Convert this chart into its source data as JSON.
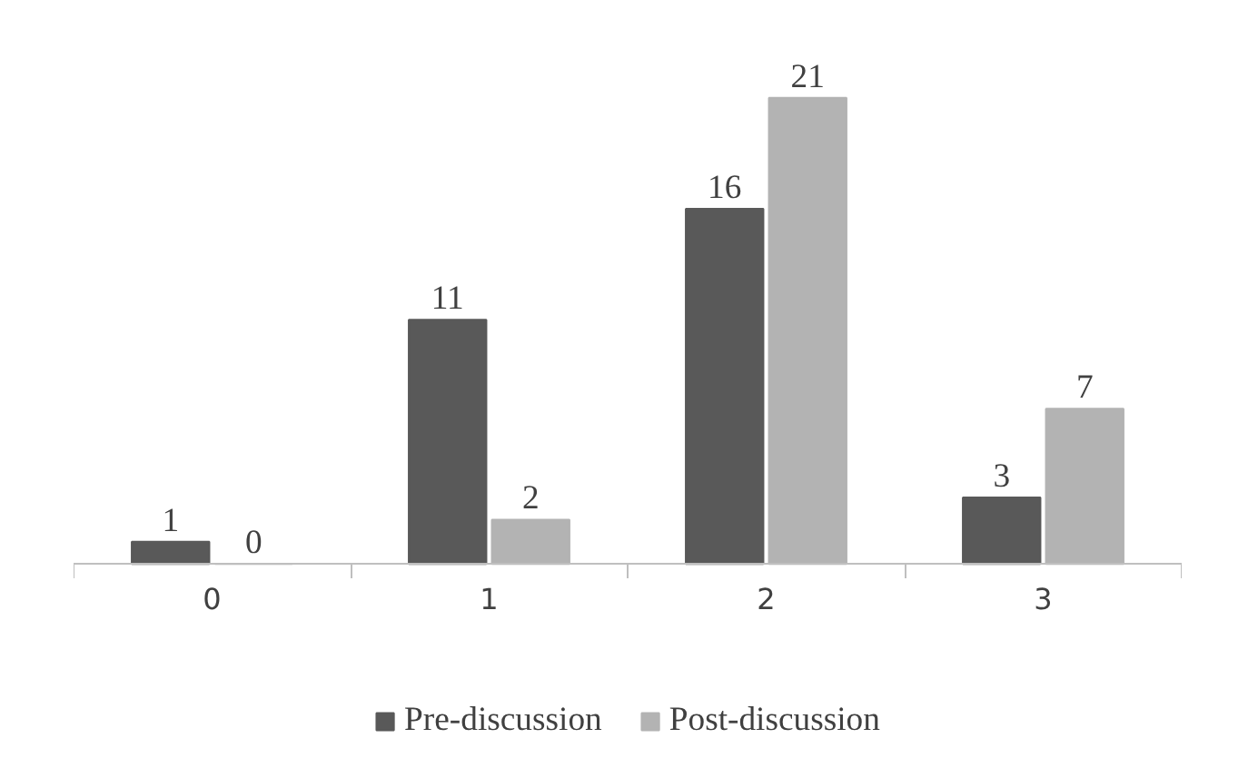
{
  "chart_data": {
    "type": "bar",
    "categories": [
      "0",
      "1",
      "2",
      "3"
    ],
    "series": [
      {
        "name": "Pre-discussion",
        "color": "#595959",
        "values": [
          1,
          11,
          16,
          3
        ]
      },
      {
        "name": "Post-discussion",
        "color": "#b3b3b3",
        "values": [
          0,
          2,
          21,
          7
        ]
      }
    ],
    "data_labels": true,
    "legend": "bottom",
    "grid": false
  }
}
